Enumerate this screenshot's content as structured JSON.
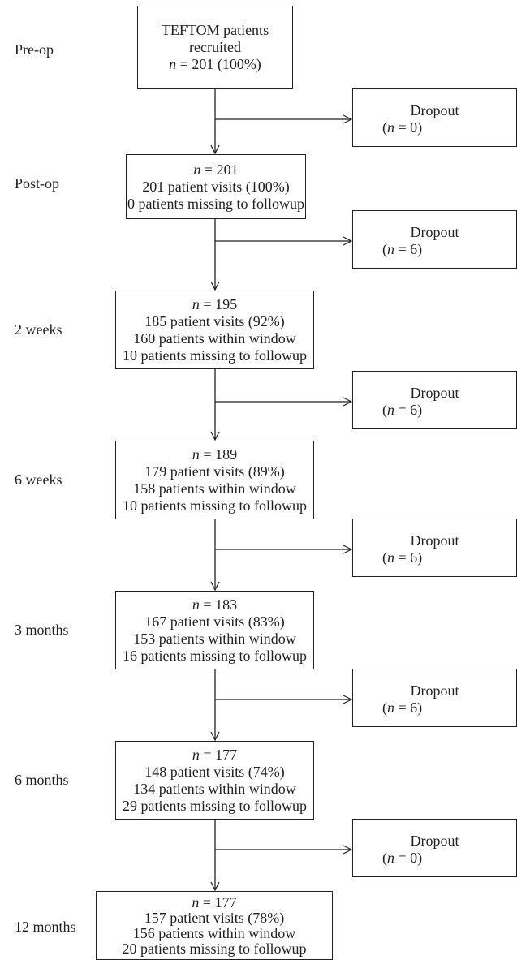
{
  "stages": [
    {
      "label": "Pre-op",
      "lines": [
        "TEFTOM patients",
        "recruited"
      ],
      "n_prefix": "n",
      "n_rest": " = 201 (100%)"
    },
    {
      "label": "Post-op",
      "n_prefix": "n",
      "n_rest": " = 201",
      "lines": [
        "201 patient visits (100%)",
        "0 patients missing to followup"
      ]
    },
    {
      "label": "2 weeks",
      "n_prefix": "n",
      "n_rest": " = 195",
      "lines": [
        "185 patient visits (92%)",
        "160 patients within window",
        "10 patients missing to followup"
      ]
    },
    {
      "label": "6 weeks",
      "n_prefix": "n",
      "n_rest": " = 189",
      "lines": [
        "179 patient visits (89%)",
        "158 patients within window",
        "10 patients missing to followup"
      ]
    },
    {
      "label": "3 months",
      "n_prefix": "n",
      "n_rest": " = 183",
      "lines": [
        "167 patient visits (83%)",
        "153 patients within window",
        "16 patients missing to followup"
      ]
    },
    {
      "label": "6 months",
      "n_prefix": "n",
      "n_rest": " = 177",
      "lines": [
        "148 patient visits (74%)",
        "134 patients within window",
        "29 patients missing to followup"
      ]
    },
    {
      "label": "12 months",
      "n_prefix": "n",
      "n_rest": " = 177",
      "lines": [
        "157 patient visits (78%)",
        "156 patients within window",
        "20 patients missing to followup"
      ]
    }
  ],
  "dropouts": [
    {
      "title": "Dropout",
      "open": "(",
      "n_prefix": "n",
      "rest": " = 0)"
    },
    {
      "title": "Dropout",
      "open": "(",
      "n_prefix": "n",
      "rest": " = 6)"
    },
    {
      "title": "Dropout",
      "open": "(",
      "n_prefix": "n",
      "rest": " = 6)"
    },
    {
      "title": "Dropout",
      "open": "(",
      "n_prefix": "n",
      "rest": " = 6)"
    },
    {
      "title": "Dropout",
      "open": "(",
      "n_prefix": "n",
      "rest": " = 6)"
    },
    {
      "title": "Dropout",
      "open": "(",
      "n_prefix": "n",
      "rest": " = 0)"
    }
  ]
}
